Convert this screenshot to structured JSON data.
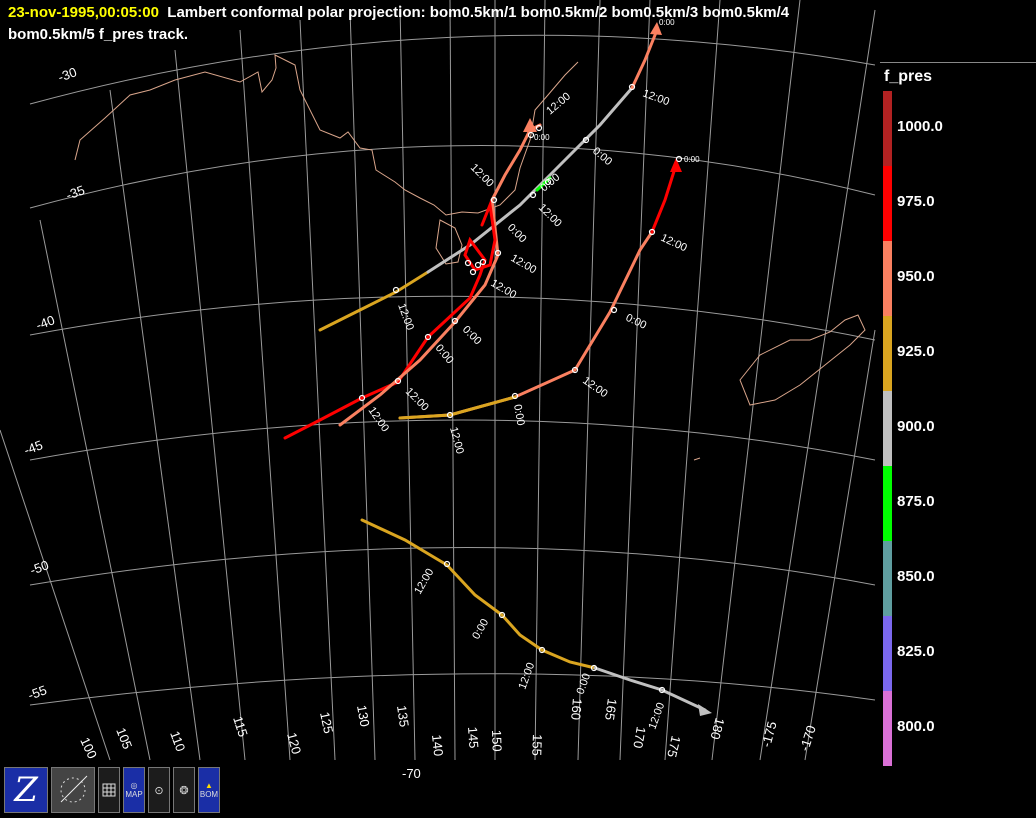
{
  "title": {
    "date": "23-nov-1995,00:05:00",
    "line1": "Lambert conformal polar projection:  bom0.5km/1 bom0.5km/2 bom0.5km/3 bom0.5km/4",
    "line2": "bom0.5km/5 f_pres track."
  },
  "legend": {
    "title": "f_pres",
    "entries": [
      {
        "label": "1000.0",
        "color": "#b22222"
      },
      {
        "label": "975.0",
        "color": "#ff0000"
      },
      {
        "label": "950.0",
        "color": "#fa8060"
      },
      {
        "label": "925.0",
        "color": "#daa520"
      },
      {
        "label": "900.0",
        "color": "#c0c0c0"
      },
      {
        "label": "875.0",
        "color": "#00ff00"
      },
      {
        "label": "850.0",
        "color": "#5f9ea0"
      },
      {
        "label": "825.0",
        "color": "#7b68ee"
      },
      {
        "label": "800.0",
        "color": "#da70d6"
      }
    ]
  },
  "lat_labels": [
    "-30",
    "-35",
    "-40",
    "-45",
    "-50",
    "-55"
  ],
  "lon_labels": [
    "100",
    "105",
    "110",
    "115",
    "120",
    "125",
    "130",
    "135",
    "140",
    "145",
    "150",
    "155",
    "160",
    "165",
    "170",
    "175",
    "180",
    "-175",
    "-170"
  ],
  "bottom_lat_label": "-70",
  "time_labels": {
    "noon": "12:00",
    "midnight": "0:00"
  },
  "toolbar": {
    "buttons": [
      "zebra-logo-icon",
      "satellite-icon",
      "grid-icon",
      "map-icon",
      "circle-icon",
      "globe-icon",
      "bom-logo-icon"
    ],
    "map_label": "MAP",
    "bom_label": "BOM"
  }
}
